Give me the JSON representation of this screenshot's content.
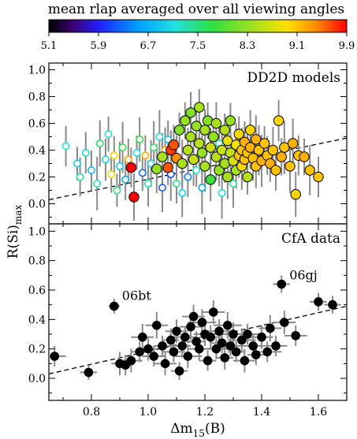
{
  "colorbar": {
    "title": "mean rlap averaged over all viewing angles",
    "ticks": [
      "5.1",
      "5.9",
      "6.7",
      "7.5",
      "8.3",
      "9.1",
      "9.9"
    ],
    "range": [
      5.1,
      9.9
    ]
  },
  "ylabel_main": "R(Si)",
  "ylabel_sub": "max",
  "xlabel_main": "Δm",
  "xlabel_sub": "15",
  "xlabel_suffix": "(B)",
  "top_panel": {
    "label": "DD2D models"
  },
  "bottom_panel": {
    "label": "CfA data",
    "annotations": [
      "06bt",
      "06gj"
    ]
  },
  "chart_data": [
    {
      "type": "scatter",
      "title": "DD2D models",
      "xlim": [
        0.65,
        1.7
      ],
      "ylim": [
        -0.15,
        1.05
      ],
      "yticks": [
        "0.0",
        "0.2",
        "0.4",
        "0.6",
        "0.8",
        "1.0"
      ],
      "trend_line": {
        "style": "dashed",
        "x": [
          0.65,
          1.7
        ],
        "y": [
          0.03,
          0.49
        ]
      },
      "points": [
        {
          "x": 0.71,
          "y": 0.43,
          "rlap": 7.2,
          "filled": false
        },
        {
          "x": 0.75,
          "y": 0.3,
          "rlap": 6.9,
          "filled": false
        },
        {
          "x": 0.76,
          "y": 0.2,
          "rlap": 7.4,
          "filled": false
        },
        {
          "x": 0.78,
          "y": 0.38,
          "rlap": 7.1,
          "filled": false
        },
        {
          "x": 0.8,
          "y": 0.25,
          "rlap": 6.8,
          "filled": false
        },
        {
          "x": 0.82,
          "y": 0.15,
          "rlap": 7.3,
          "filled": false
        },
        {
          "x": 0.83,
          "y": 0.45,
          "rlap": 7.6,
          "filled": false
        },
        {
          "x": 0.85,
          "y": 0.33,
          "rlap": 7.0,
          "filled": false
        },
        {
          "x": 0.86,
          "y": 0.52,
          "rlap": 7.2,
          "filled": false
        },
        {
          "x": 0.87,
          "y": 0.22,
          "rlap": 8.8,
          "filled": false
        },
        {
          "x": 0.88,
          "y": 0.36,
          "rlap": 9.0,
          "filled": false
        },
        {
          "x": 0.89,
          "y": 0.1,
          "rlap": 7.5,
          "filled": false
        },
        {
          "x": 0.9,
          "y": 0.28,
          "rlap": 6.9,
          "filled": false
        },
        {
          "x": 0.91,
          "y": 0.42,
          "rlap": 7.7,
          "filled": false
        },
        {
          "x": 0.92,
          "y": 0.18,
          "rlap": 6.6,
          "filled": false
        },
        {
          "x": 0.93,
          "y": 0.33,
          "rlap": 9.3,
          "filled": false
        },
        {
          "x": 0.94,
          "y": 0.27,
          "rlap": 9.9,
          "filled": true
        },
        {
          "x": 0.95,
          "y": 0.05,
          "rlap": 9.9,
          "filled": true
        },
        {
          "x": 0.96,
          "y": 0.38,
          "rlap": 7.1,
          "filled": false
        },
        {
          "x": 0.97,
          "y": 0.48,
          "rlap": 7.8,
          "filled": false
        },
        {
          "x": 0.98,
          "y": 0.23,
          "rlap": 6.3,
          "filled": false
        },
        {
          "x": 0.99,
          "y": 0.36,
          "rlap": 9.2,
          "filled": false
        },
        {
          "x": 1.0,
          "y": 0.15,
          "rlap": 7.3,
          "filled": false
        },
        {
          "x": 1.01,
          "y": 0.3,
          "rlap": 7.0,
          "filled": false
        },
        {
          "x": 1.02,
          "y": 0.42,
          "rlap": 7.6,
          "filled": false
        },
        {
          "x": 1.03,
          "y": 0.26,
          "rlap": 8.3,
          "filled": true
        },
        {
          "x": 1.04,
          "y": 0.5,
          "rlap": 7.2,
          "filled": false
        },
        {
          "x": 1.05,
          "y": 0.12,
          "rlap": 6.2,
          "filled": false
        },
        {
          "x": 1.05,
          "y": 0.35,
          "rlap": 8.4,
          "filled": true
        },
        {
          "x": 1.06,
          "y": 0.4,
          "rlap": 9.2,
          "filled": false
        },
        {
          "x": 1.07,
          "y": 0.27,
          "rlap": 9.6,
          "filled": true
        },
        {
          "x": 1.07,
          "y": 0.48,
          "rlap": 6.8,
          "filled": false
        },
        {
          "x": 1.08,
          "y": 0.22,
          "rlap": 6.1,
          "filled": false
        },
        {
          "x": 1.08,
          "y": 0.4,
          "rlap": 9.7,
          "filled": true
        },
        {
          "x": 1.09,
          "y": 0.44,
          "rlap": 9.6,
          "filled": true
        },
        {
          "x": 1.1,
          "y": 0.34,
          "rlap": 9.4,
          "filled": true
        },
        {
          "x": 1.1,
          "y": 0.15,
          "rlap": 7.4,
          "filled": false
        },
        {
          "x": 1.11,
          "y": 0.55,
          "rlap": 8.2,
          "filled": true
        },
        {
          "x": 1.12,
          "y": 0.3,
          "rlap": 8.4,
          "filled": true
        },
        {
          "x": 1.12,
          "y": 0.08,
          "rlap": 7.0,
          "filled": false
        },
        {
          "x": 1.13,
          "y": 0.62,
          "rlap": 8.3,
          "filled": true
        },
        {
          "x": 1.14,
          "y": 0.4,
          "rlap": 8.5,
          "filled": true
        },
        {
          "x": 1.14,
          "y": 0.2,
          "rlap": 6.4,
          "filled": false
        },
        {
          "x": 1.15,
          "y": 0.5,
          "rlap": 8.4,
          "filled": true
        },
        {
          "x": 1.15,
          "y": 0.68,
          "rlap": 8.2,
          "filled": true
        },
        {
          "x": 1.16,
          "y": 0.33,
          "rlap": 8.6,
          "filled": true
        },
        {
          "x": 1.17,
          "y": 0.58,
          "rlap": 8.3,
          "filled": true
        },
        {
          "x": 1.17,
          "y": 0.25,
          "rlap": 7.2,
          "filled": false
        },
        {
          "x": 1.18,
          "y": 0.72,
          "rlap": 8.4,
          "filled": true
        },
        {
          "x": 1.18,
          "y": 0.45,
          "rlap": 8.5,
          "filled": true
        },
        {
          "x": 1.19,
          "y": 0.38,
          "rlap": 8.3,
          "filled": true
        },
        {
          "x": 1.19,
          "y": 0.12,
          "rlap": 6.6,
          "filled": false
        },
        {
          "x": 1.2,
          "y": 0.55,
          "rlap": 8.4,
          "filled": true
        },
        {
          "x": 1.2,
          "y": 0.28,
          "rlap": 8.4,
          "filled": true
        },
        {
          "x": 1.21,
          "y": 0.62,
          "rlap": 8.2,
          "filled": true
        },
        {
          "x": 1.22,
          "y": 0.42,
          "rlap": 8.6,
          "filled": true
        },
        {
          "x": 1.22,
          "y": 0.18,
          "rlap": 7.8,
          "filled": true
        },
        {
          "x": 1.23,
          "y": 0.5,
          "rlap": 8.3,
          "filled": true
        },
        {
          "x": 1.24,
          "y": 0.35,
          "rlap": 8.5,
          "filled": true
        },
        {
          "x": 1.24,
          "y": 0.6,
          "rlap": 8.4,
          "filled": true
        },
        {
          "x": 1.25,
          "y": 0.25,
          "rlap": 8.3,
          "filled": true
        },
        {
          "x": 1.25,
          "y": 0.45,
          "rlap": 7.3,
          "filled": false
        },
        {
          "x": 1.26,
          "y": 0.4,
          "rlap": 8.6,
          "filled": true
        },
        {
          "x": 1.26,
          "y": 0.08,
          "rlap": 7.1,
          "filled": false
        },
        {
          "x": 1.27,
          "y": 0.55,
          "rlap": 8.5,
          "filled": true
        },
        {
          "x": 1.27,
          "y": 0.3,
          "rlap": 8.4,
          "filled": true
        },
        {
          "x": 1.28,
          "y": 0.2,
          "rlap": 8.4,
          "filled": true
        },
        {
          "x": 1.28,
          "y": 0.47,
          "rlap": 8.8,
          "filled": true
        },
        {
          "x": 1.29,
          "y": 0.38,
          "rlap": 8.6,
          "filled": true
        },
        {
          "x": 1.29,
          "y": 0.62,
          "rlap": 8.3,
          "filled": true
        },
        {
          "x": 1.3,
          "y": 0.32,
          "rlap": 8.7,
          "filled": true
        },
        {
          "x": 1.3,
          "y": 0.15,
          "rlap": 7.4,
          "filled": false
        },
        {
          "x": 1.31,
          "y": 0.44,
          "rlap": 8.9,
          "filled": true
        },
        {
          "x": 1.31,
          "y": 0.25,
          "rlap": 8.4,
          "filled": true
        },
        {
          "x": 1.32,
          "y": 0.52,
          "rlap": 9.0,
          "filled": true
        },
        {
          "x": 1.32,
          "y": 0.36,
          "rlap": 9.1,
          "filled": true
        },
        {
          "x": 1.33,
          "y": 0.4,
          "rlap": 9.1,
          "filled": true
        },
        {
          "x": 1.33,
          "y": 0.28,
          "rlap": 9.0,
          "filled": true
        },
        {
          "x": 1.34,
          "y": 0.46,
          "rlap": 9.2,
          "filled": true
        },
        {
          "x": 1.34,
          "y": 0.33,
          "rlap": 9.1,
          "filled": true
        },
        {
          "x": 1.35,
          "y": 0.38,
          "rlap": 9.1,
          "filled": true
        },
        {
          "x": 1.35,
          "y": 0.2,
          "rlap": 8.5,
          "filled": true
        },
        {
          "x": 1.36,
          "y": 0.42,
          "rlap": 9.2,
          "filled": true
        },
        {
          "x": 1.36,
          "y": 0.55,
          "rlap": 9.0,
          "filled": true
        },
        {
          "x": 1.37,
          "y": 0.34,
          "rlap": 9.1,
          "filled": true
        },
        {
          "x": 1.38,
          "y": 0.48,
          "rlap": 9.2,
          "filled": true
        },
        {
          "x": 1.38,
          "y": 0.28,
          "rlap": 9.1,
          "filled": true
        },
        {
          "x": 1.39,
          "y": 0.4,
          "rlap": 9.1,
          "filled": true
        },
        {
          "x": 1.4,
          "y": 0.32,
          "rlap": 9.2,
          "filled": true
        },
        {
          "x": 1.41,
          "y": 0.45,
          "rlap": 9.1,
          "filled": true
        },
        {
          "x": 1.42,
          "y": 0.36,
          "rlap": 9.1,
          "filled": true
        },
        {
          "x": 1.43,
          "y": 0.3,
          "rlap": 9.2,
          "filled": true
        },
        {
          "x": 1.44,
          "y": 0.4,
          "rlap": 9.1,
          "filled": true
        },
        {
          "x": 1.45,
          "y": 0.25,
          "rlap": 9.1,
          "filled": true
        },
        {
          "x": 1.46,
          "y": 0.62,
          "rlap": 9.0,
          "filled": true
        },
        {
          "x": 1.47,
          "y": 0.35,
          "rlap": 9.2,
          "filled": true
        },
        {
          "x": 1.48,
          "y": 0.42,
          "rlap": 9.1,
          "filled": true
        },
        {
          "x": 1.5,
          "y": 0.28,
          "rlap": 9.1,
          "filled": true
        },
        {
          "x": 1.51,
          "y": 0.45,
          "rlap": 9.2,
          "filled": true
        },
        {
          "x": 1.52,
          "y": 0.07,
          "rlap": 9.0,
          "filled": true
        },
        {
          "x": 1.53,
          "y": 0.36,
          "rlap": 9.1,
          "filled": true
        },
        {
          "x": 1.55,
          "y": 0.35,
          "rlap": 9.2,
          "filled": true
        },
        {
          "x": 1.57,
          "y": 0.25,
          "rlap": 9.1,
          "filled": true
        },
        {
          "x": 1.6,
          "y": 0.2,
          "rlap": 9.1,
          "filled": true
        }
      ]
    },
    {
      "type": "scatter",
      "title": "CfA data",
      "xlim": [
        0.65,
        1.7
      ],
      "ylim": [
        -0.15,
        1.05
      ],
      "xticks": [
        "0.8",
        "1.0",
        "1.2",
        "1.4",
        "1.6"
      ],
      "yticks": [
        "0.0",
        "0.2",
        "0.4",
        "0.6",
        "0.8",
        "1.0"
      ],
      "trend_line": {
        "style": "dashed",
        "x": [
          0.65,
          1.7
        ],
        "y": [
          0.03,
          0.49
        ]
      },
      "points": [
        {
          "x": 0.67,
          "y": 0.15,
          "xerr": 0.04,
          "yerr": 0.07
        },
        {
          "x": 0.79,
          "y": 0.04,
          "xerr": 0.03,
          "yerr": 0.05
        },
        {
          "x": 0.88,
          "y": 0.49,
          "xerr": 0.02,
          "yerr": 0.05,
          "label": "06bt"
        },
        {
          "x": 0.9,
          "y": 0.1,
          "xerr": 0.03,
          "yerr": 0.08
        },
        {
          "x": 0.92,
          "y": 0.09,
          "xerr": 0.02,
          "yerr": 0.07
        },
        {
          "x": 0.94,
          "y": 0.12,
          "xerr": 0.04,
          "yerr": 0.08
        },
        {
          "x": 0.97,
          "y": 0.18,
          "xerr": 0.03,
          "yerr": 0.07
        },
        {
          "x": 0.98,
          "y": 0.28,
          "xerr": 0.04,
          "yerr": 0.09
        },
        {
          "x": 1.0,
          "y": 0.2,
          "xerr": 0.03,
          "yerr": 0.08
        },
        {
          "x": 1.02,
          "y": 0.15,
          "xerr": 0.04,
          "yerr": 0.07
        },
        {
          "x": 1.03,
          "y": 0.36,
          "xerr": 0.04,
          "yerr": 0.09
        },
        {
          "x": 1.05,
          "y": 0.22,
          "xerr": 0.03,
          "yerr": 0.07
        },
        {
          "x": 1.06,
          "y": 0.1,
          "xerr": 0.04,
          "yerr": 0.08
        },
        {
          "x": 1.08,
          "y": 0.26,
          "xerr": 0.03,
          "yerr": 0.08
        },
        {
          "x": 1.09,
          "y": 0.18,
          "xerr": 0.04,
          "yerr": 0.07
        },
        {
          "x": 1.1,
          "y": 0.32,
          "xerr": 0.04,
          "yerr": 0.08
        },
        {
          "x": 1.11,
          "y": 0.05,
          "xerr": 0.03,
          "yerr": 0.06
        },
        {
          "x": 1.12,
          "y": 0.22,
          "xerr": 0.03,
          "yerr": 0.08
        },
        {
          "x": 1.13,
          "y": 0.28,
          "xerr": 0.04,
          "yerr": 0.07
        },
        {
          "x": 1.14,
          "y": 0.15,
          "xerr": 0.05,
          "yerr": 0.08
        },
        {
          "x": 1.15,
          "y": 0.35,
          "xerr": 0.04,
          "yerr": 0.09
        },
        {
          "x": 1.16,
          "y": 0.42,
          "xerr": 0.04,
          "yerr": 0.08
        },
        {
          "x": 1.17,
          "y": 0.25,
          "xerr": 0.03,
          "yerr": 0.07
        },
        {
          "x": 1.18,
          "y": 0.2,
          "xerr": 0.04,
          "yerr": 0.08
        },
        {
          "x": 1.19,
          "y": 0.38,
          "xerr": 0.05,
          "yerr": 0.09
        },
        {
          "x": 1.2,
          "y": 0.3,
          "xerr": 0.04,
          "yerr": 0.08
        },
        {
          "x": 1.21,
          "y": 0.12,
          "xerr": 0.03,
          "yerr": 0.07
        },
        {
          "x": 1.22,
          "y": 0.28,
          "xerr": 0.04,
          "yerr": 0.08
        },
        {
          "x": 1.23,
          "y": 0.45,
          "xerr": 0.04,
          "yerr": 0.08
        },
        {
          "x": 1.24,
          "y": 0.2,
          "xerr": 0.05,
          "yerr": 0.07
        },
        {
          "x": 1.25,
          "y": 0.32,
          "xerr": 0.04,
          "yerr": 0.08
        },
        {
          "x": 1.26,
          "y": 0.24,
          "xerr": 0.04,
          "yerr": 0.07
        },
        {
          "x": 1.27,
          "y": 0.14,
          "xerr": 0.03,
          "yerr": 0.08
        },
        {
          "x": 1.28,
          "y": 0.36,
          "xerr": 0.05,
          "yerr": 0.09
        },
        {
          "x": 1.29,
          "y": 0.22,
          "xerr": 0.04,
          "yerr": 0.07
        },
        {
          "x": 1.3,
          "y": 0.3,
          "xerr": 0.04,
          "yerr": 0.08
        },
        {
          "x": 1.31,
          "y": 0.18,
          "xerr": 0.03,
          "yerr": 0.07
        },
        {
          "x": 1.33,
          "y": 0.26,
          "xerr": 0.05,
          "yerr": 0.08
        },
        {
          "x": 1.34,
          "y": 0.12,
          "xerr": 0.04,
          "yerr": 0.08
        },
        {
          "x": 1.35,
          "y": 0.3,
          "xerr": 0.04,
          "yerr": 0.07
        },
        {
          "x": 1.37,
          "y": 0.22,
          "xerr": 0.04,
          "yerr": 0.08
        },
        {
          "x": 1.38,
          "y": 0.16,
          "xerr": 0.03,
          "yerr": 0.07
        },
        {
          "x": 1.4,
          "y": 0.28,
          "xerr": 0.04,
          "yerr": 0.08
        },
        {
          "x": 1.42,
          "y": 0.18,
          "xerr": 0.05,
          "yerr": 0.07
        },
        {
          "x": 1.43,
          "y": 0.34,
          "xerr": 0.04,
          "yerr": 0.09
        },
        {
          "x": 1.45,
          "y": 0.22,
          "xerr": 0.04,
          "yerr": 0.07
        },
        {
          "x": 1.47,
          "y": 0.64,
          "xerr": 0.03,
          "yerr": 0.06,
          "label": "06gj"
        },
        {
          "x": 1.48,
          "y": 0.38,
          "xerr": 0.04,
          "yerr": 0.08
        },
        {
          "x": 1.52,
          "y": 0.29,
          "xerr": 0.04,
          "yerr": 0.07
        },
        {
          "x": 1.6,
          "y": 0.52,
          "xerr": 0.03,
          "yerr": 0.06
        },
        {
          "x": 1.65,
          "y": 0.5,
          "xerr": 0.03,
          "yerr": 0.06
        }
      ]
    }
  ]
}
